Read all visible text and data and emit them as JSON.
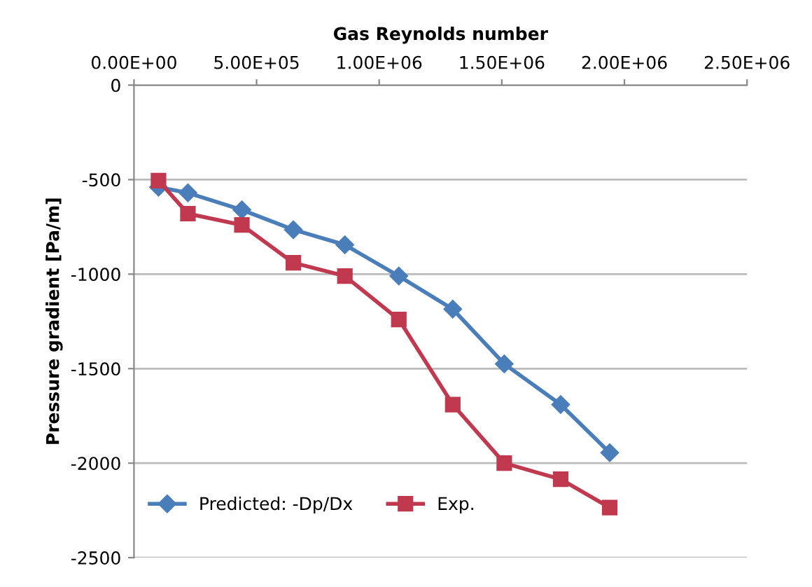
{
  "chart_data": {
    "type": "line",
    "xlabel": "Gas Reynolds number",
    "ylabel": "Pressure gradient [Pa/m]",
    "xlim": [
      0,
      2500000
    ],
    "xticks": [
      {
        "value": 0,
        "label": "0.00E+00"
      },
      {
        "value": 500000,
        "label": "5.00E+05"
      },
      {
        "value": 1000000,
        "label": "1.00E+06"
      },
      {
        "value": 1500000,
        "label": "1.50E+06"
      },
      {
        "value": 2000000,
        "label": "2.00E+06"
      },
      {
        "value": 2500000,
        "label": "2.50E+06"
      }
    ],
    "ylim": [
      -2500,
      0
    ],
    "yticks": [
      -2500,
      -2000,
      -1500,
      -1000,
      -500,
      0
    ],
    "x": [
      100000,
      220000,
      440000,
      650000,
      860000,
      1080000,
      1300000,
      1510000,
      1740000,
      1940000
    ],
    "series": [
      {
        "name": "Predicted: -Dp/Dx",
        "color": "#4a7ebb",
        "marker": "diamond",
        "values": [
          -540,
          -570,
          -660,
          -765,
          -845,
          -1010,
          -1185,
          -1475,
          -1690,
          -1945
        ]
      },
      {
        "name": "Exp.",
        "color": "#c0394f",
        "marker": "square",
        "values": [
          -505,
          -680,
          -740,
          -940,
          -1010,
          -1240,
          -1690,
          -2000,
          -2085,
          -2235
        ]
      }
    ],
    "grid": "y",
    "legend": "bottom left",
    "line_style": "solid"
  }
}
